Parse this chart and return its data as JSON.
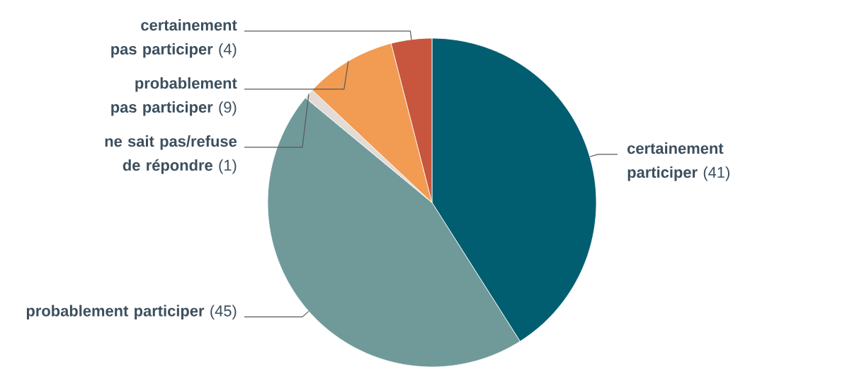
{
  "chart_data": {
    "type": "pie",
    "categories": [
      "certainement participer",
      "probablement participer",
      "ne sait pas/refuse de répondre",
      "probablement pas participer",
      "certainement pas participer"
    ],
    "values": [
      41,
      45,
      1,
      9,
      4
    ],
    "value_labels": [
      "(41)",
      "(45)",
      "(1)",
      "(9)",
      "(4)"
    ],
    "colors": [
      "#015e70",
      "#6f9a99",
      "#e3dcd6",
      "#f29b52",
      "#c8553d"
    ]
  }
}
